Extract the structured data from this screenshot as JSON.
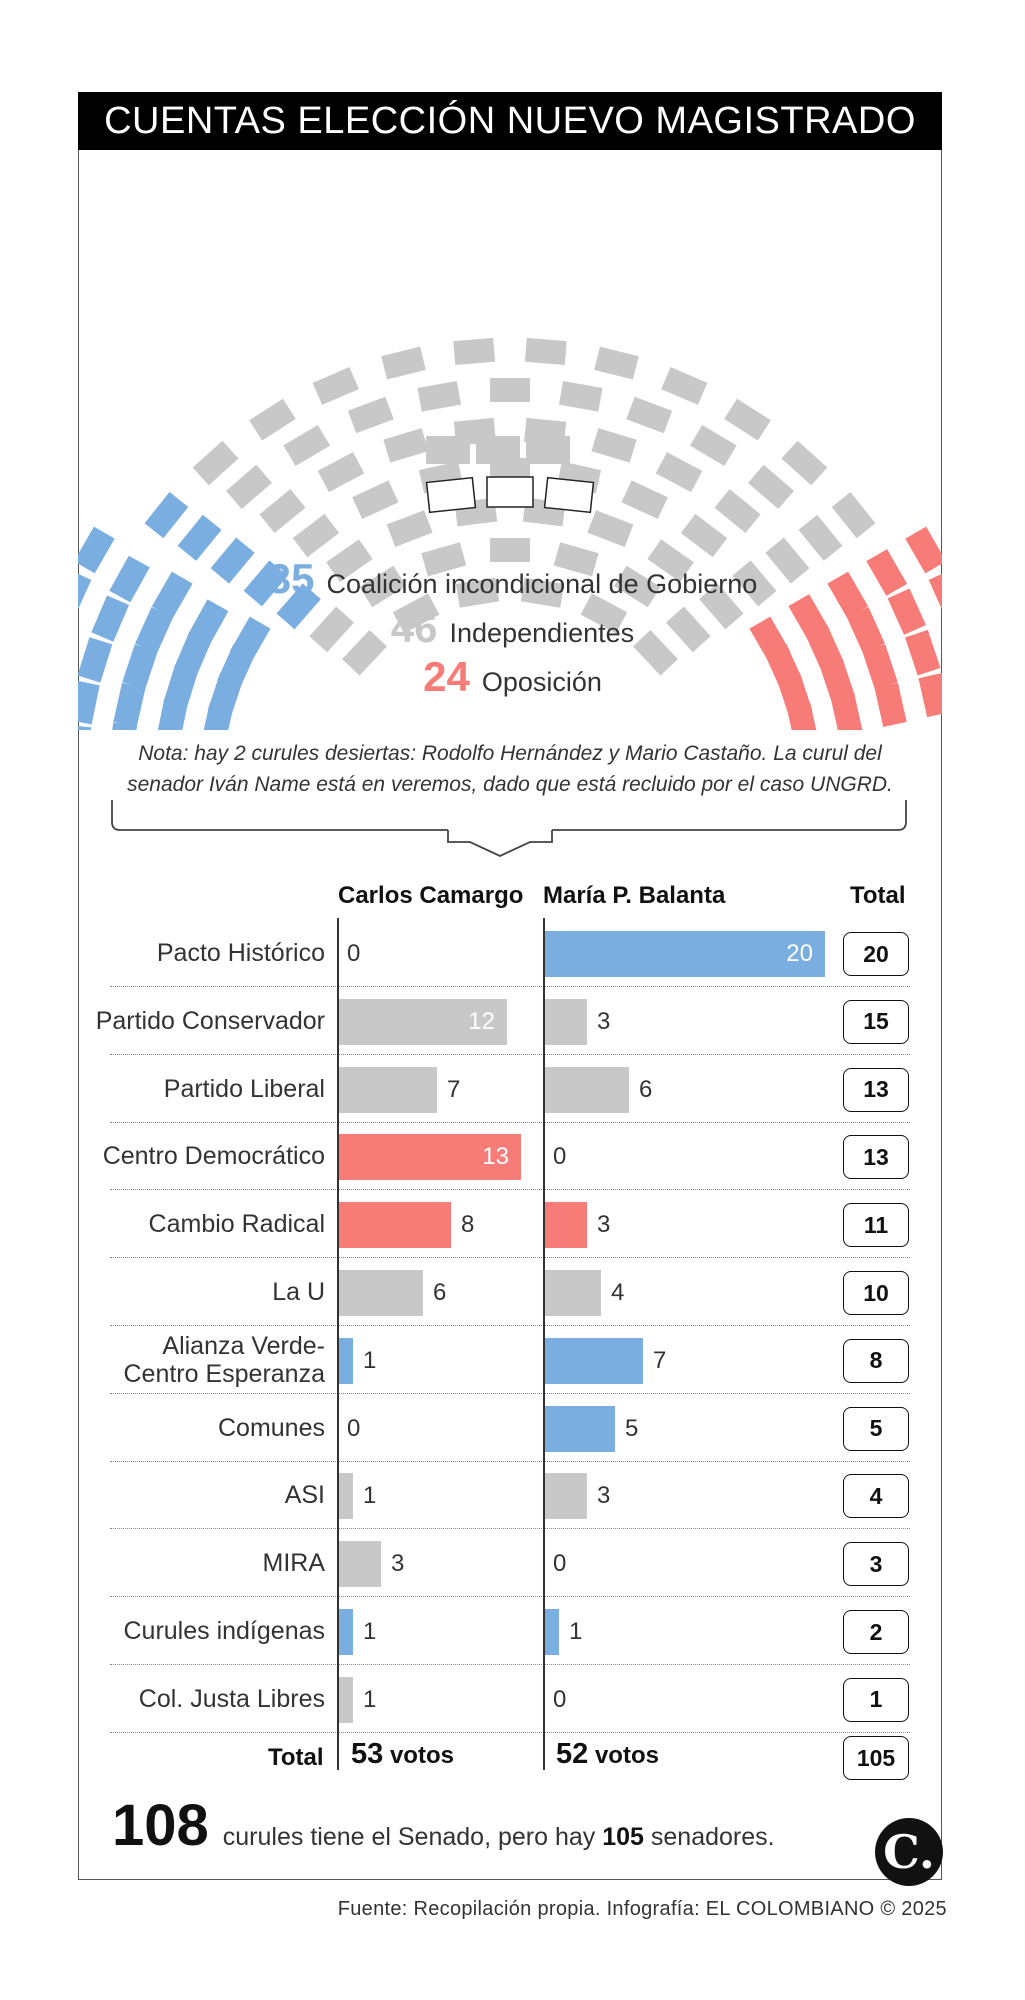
{
  "title": "CUENTAS ELECCIÓN NUEVO MAGISTRADO",
  "colors": {
    "gobierno": "#7aaee0",
    "independientes": "#c8c8c8",
    "oposicion": "#f77b77",
    "empty": "#ffffff"
  },
  "hemicycle": {
    "legend": [
      {
        "num": "35",
        "label": "Coalición incondicional de Gobierno",
        "color": "#7aaee0"
      },
      {
        "num": "46",
        "label": "Independientes",
        "color": "#c8c8c8"
      },
      {
        "num": "24",
        "label": "Oposición",
        "color": "#f77b77"
      }
    ],
    "seat_counts": {
      "gobierno": 35,
      "independientes": 46,
      "oposicion": 24,
      "vacias": 3
    }
  },
  "note": "Nota: hay 2 curules desiertas: Rodolfo Hernández y Mario Castaño. La curul del senador Iván Name está en veremos, dado que está recluido por el caso UNGRD.",
  "table": {
    "col_a": "Carlos Camargo",
    "col_b": "María P. Balanta",
    "col_total": "Total",
    "total_row_label": "Total",
    "total_a_num": "53",
    "total_b_num": "52",
    "votes_word": "votos",
    "grand_total": "105"
  },
  "chart_data": {
    "type": "bar",
    "categories": [
      "Pacto Histórico",
      "Partido Conservador",
      "Partido Liberal",
      "Centro Democrático",
      "Cambio Radical",
      "La U",
      "Alianza Verde-\nCentro Esperanza",
      "Comunes",
      "ASI",
      "MIRA",
      "Curules indígenas",
      "Col. Justa Libres"
    ],
    "series": [
      {
        "name": "Carlos Camargo",
        "values": [
          0,
          12,
          7,
          13,
          8,
          6,
          1,
          0,
          1,
          3,
          1,
          1
        ]
      },
      {
        "name": "María P. Balanta",
        "values": [
          20,
          3,
          6,
          0,
          3,
          4,
          7,
          5,
          3,
          0,
          1,
          0
        ]
      }
    ],
    "totals": [
      20,
      15,
      13,
      13,
      11,
      10,
      8,
      5,
      4,
      3,
      2,
      1
    ],
    "bar_colors": [
      "#7aaee0",
      "#c8c8c8",
      "#c8c8c8",
      "#f77b77",
      "#f77b77",
      "#c8c8c8",
      "#7aaee0",
      "#7aaee0",
      "#c8c8c8",
      "#c8c8c8",
      "#7aaee0",
      "#c8c8c8"
    ],
    "xlim": [
      0,
      20
    ]
  },
  "footer": {
    "big_number": "108",
    "text_before": "curules tiene el Senado, pero hay",
    "text_bold": "105",
    "text_after": "senadores.",
    "logo": "C.",
    "source": "Fuente: Recopilación propia. Infografía: EL COLOMBIANO © 2025"
  }
}
